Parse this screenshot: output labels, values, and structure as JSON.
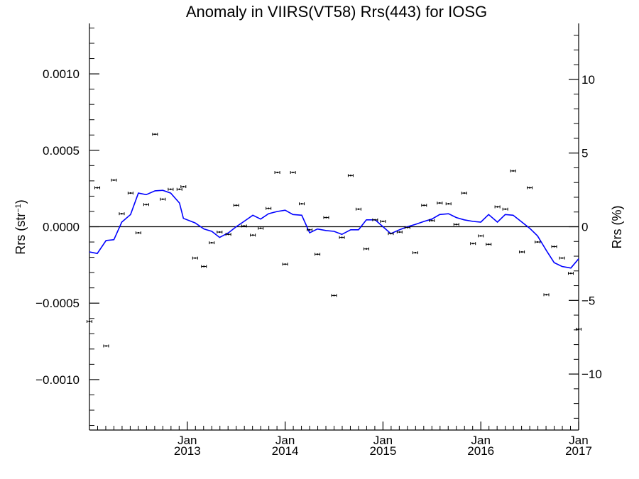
{
  "chart_data": {
    "type": "scatter",
    "title": "Anomaly in VIIRS(VT58) Rrs(443) for IOSG",
    "ylabel": {
      "base": "Rrs (str",
      "sup": "−1",
      "close": ")"
    },
    "y2label": "Rrs (%)",
    "xlim": [
      2012.0,
      2017.0
    ],
    "ylim": [
      -0.00133,
      0.00133
    ],
    "y2lim": [
      -13.8,
      13.8
    ],
    "x_ticks": [
      {
        "value": 2013.0,
        "month": "Jan",
        "year": "2013"
      },
      {
        "value": 2014.0,
        "month": "Jan",
        "year": "2014"
      },
      {
        "value": 2015.0,
        "month": "Jan",
        "year": "2015"
      },
      {
        "value": 2016.0,
        "month": "Jan",
        "year": "2016"
      },
      {
        "value": 2017.0,
        "month": "Jan",
        "year": "2017"
      }
    ],
    "y_ticks": [
      {
        "value": 0.001,
        "label": "0.0010"
      },
      {
        "value": 0.0005,
        "label": "0.0005"
      },
      {
        "value": 0.0,
        "label": "0.0000"
      },
      {
        "value": -0.0005,
        "label": "−0.0005"
      },
      {
        "value": -0.001,
        "label": "−0.0010"
      }
    ],
    "y2_ticks": [
      {
        "value": 10,
        "label": "10"
      },
      {
        "value": 5,
        "label": "5"
      },
      {
        "value": 0,
        "label": "0"
      },
      {
        "value": -5,
        "label": "−5"
      },
      {
        "value": -10,
        "label": "−10"
      }
    ],
    "zero_line": 0.0,
    "series": [
      {
        "kind": "points-with-errorbars",
        "color": "#000000",
        "points": [
          [
            2012.0,
            -0.00062
          ],
          [
            2012.08,
            0.000255
          ],
          [
            2012.17,
            -0.00078
          ],
          [
            2012.25,
            0.000305
          ],
          [
            2012.33,
            8.5e-05
          ],
          [
            2012.42,
            0.00022
          ],
          [
            2012.5,
            -4e-05
          ],
          [
            2012.58,
            0.000145
          ],
          [
            2012.67,
            0.000605
          ],
          [
            2012.75,
            0.00018
          ],
          [
            2012.83,
            0.000245
          ],
          [
            2012.92,
            0.000245
          ],
          [
            2012.96,
            0.000262
          ],
          [
            2013.08,
            -0.000205
          ],
          [
            2013.17,
            -0.00026
          ],
          [
            2013.25,
            -0.000105
          ],
          [
            2013.33,
            -3.5e-05
          ],
          [
            2013.42,
            -5e-05
          ],
          [
            2013.5,
            0.00014
          ],
          [
            2013.58,
            5e-06
          ],
          [
            2013.67,
            -5.5e-05
          ],
          [
            2013.75,
            -1e-05
          ],
          [
            2013.83,
            0.00012
          ],
          [
            2013.92,
            0.000355
          ],
          [
            2014.0,
            -0.000245
          ],
          [
            2014.08,
            0.000355
          ],
          [
            2014.17,
            0.00015
          ],
          [
            2014.25,
            -2e-05
          ],
          [
            2014.33,
            -0.00018
          ],
          [
            2014.42,
            6e-05
          ],
          [
            2014.5,
            -0.00045
          ],
          [
            2014.58,
            -7e-05
          ],
          [
            2014.67,
            0.000335
          ],
          [
            2014.75,
            0.000115
          ],
          [
            2014.83,
            -0.000145
          ],
          [
            2014.92,
            4.5e-05
          ],
          [
            2015.0,
            3.5e-05
          ],
          [
            2015.08,
            -4.5e-05
          ],
          [
            2015.17,
            -3.5e-05
          ],
          [
            2015.25,
            -5e-06
          ],
          [
            2015.33,
            -0.00017
          ],
          [
            2015.42,
            0.00014
          ],
          [
            2015.5,
            4e-05
          ],
          [
            2015.58,
            0.000155
          ],
          [
            2015.67,
            0.00015
          ],
          [
            2015.75,
            1.5e-05
          ],
          [
            2015.83,
            0.00022
          ],
          [
            2015.92,
            -0.00011
          ],
          [
            2016.0,
            -6e-05
          ],
          [
            2016.08,
            -0.000115
          ],
          [
            2016.17,
            0.00013
          ],
          [
            2016.25,
            0.000115
          ],
          [
            2016.33,
            0.000365
          ],
          [
            2016.42,
            -0.000165
          ],
          [
            2016.5,
            0.000255
          ],
          [
            2016.58,
            -0.0001
          ],
          [
            2016.67,
            -0.000445
          ],
          [
            2016.75,
            -0.00013
          ],
          [
            2016.83,
            -0.000205
          ],
          [
            2016.92,
            -0.000305
          ],
          [
            2017.0,
            -0.00067
          ]
        ]
      },
      {
        "kind": "line",
        "color": "#0000ff",
        "points": [
          [
            2012.0,
            -0.000165
          ],
          [
            2012.08,
            -0.000175
          ],
          [
            2012.17,
            -9e-05
          ],
          [
            2012.25,
            -8.5e-05
          ],
          [
            2012.33,
            3e-05
          ],
          [
            2012.42,
            8e-05
          ],
          [
            2012.5,
            0.00022
          ],
          [
            2012.58,
            0.00021
          ],
          [
            2012.67,
            0.000235
          ],
          [
            2012.75,
            0.000238
          ],
          [
            2012.83,
            0.00022
          ],
          [
            2012.92,
            0.000155
          ],
          [
            2012.96,
            5.5e-05
          ],
          [
            2013.08,
            2.5e-05
          ],
          [
            2013.17,
            -1.5e-05
          ],
          [
            2013.25,
            -3e-05
          ],
          [
            2013.33,
            -7e-05
          ],
          [
            2013.42,
            -4e-05
          ],
          [
            2013.5,
            0.0
          ],
          [
            2013.58,
            3.5e-05
          ],
          [
            2013.67,
            7.5e-05
          ],
          [
            2013.75,
            5e-05
          ],
          [
            2013.83,
            8.5e-05
          ],
          [
            2013.92,
            0.0001
          ],
          [
            2014.0,
            0.000108
          ],
          [
            2014.08,
            8e-05
          ],
          [
            2014.17,
            7.5e-05
          ],
          [
            2014.25,
            -4e-05
          ],
          [
            2014.33,
            -1.5e-05
          ],
          [
            2014.42,
            -2.5e-05
          ],
          [
            2014.5,
            -3e-05
          ],
          [
            2014.58,
            -5e-05
          ],
          [
            2014.67,
            -2e-05
          ],
          [
            2014.75,
            -2e-05
          ],
          [
            2014.83,
            4.5e-05
          ],
          [
            2014.92,
            4.5e-05
          ],
          [
            2015.0,
            0.0
          ],
          [
            2015.08,
            -4.5e-05
          ],
          [
            2015.17,
            -2e-05
          ],
          [
            2015.25,
            0.0
          ],
          [
            2015.33,
            1.5e-05
          ],
          [
            2015.42,
            3.5e-05
          ],
          [
            2015.5,
            5e-05
          ],
          [
            2015.58,
            8e-05
          ],
          [
            2015.67,
            8.5e-05
          ],
          [
            2015.75,
            6e-05
          ],
          [
            2015.83,
            4.5e-05
          ],
          [
            2015.92,
            3.5e-05
          ],
          [
            2016.0,
            3e-05
          ],
          [
            2016.08,
            8e-05
          ],
          [
            2016.17,
            3e-05
          ],
          [
            2016.25,
            8e-05
          ],
          [
            2016.33,
            7.5e-05
          ],
          [
            2016.42,
            3e-05
          ],
          [
            2016.5,
            -1e-05
          ],
          [
            2016.58,
            -6e-05
          ],
          [
            2016.67,
            -0.000155
          ],
          [
            2016.75,
            -0.000235
          ],
          [
            2016.83,
            -0.00026
          ],
          [
            2016.92,
            -0.00027
          ],
          [
            2017.0,
            -0.00021
          ]
        ]
      }
    ]
  }
}
